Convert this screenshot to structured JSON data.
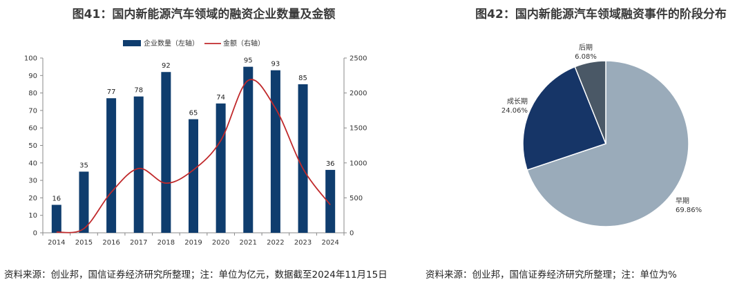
{
  "chart_data": [
    {
      "type": "bar",
      "title": "图41：国内新能源汽车领域的融资企业数量及金额",
      "categories": [
        "2014",
        "2015",
        "2016",
        "2017",
        "2018",
        "2019",
        "2020",
        "2021",
        "2022",
        "2023",
        "2024"
      ],
      "series": [
        {
          "name": "企业数量（左轴）",
          "type": "bar",
          "axis": "left",
          "values": [
            16,
            35,
            77,
            78,
            92,
            65,
            74,
            95,
            93,
            85,
            36
          ],
          "color": "#0f3d6e"
        },
        {
          "name": "金额（右轴）",
          "type": "line",
          "axis": "right",
          "values": [
            10,
            60,
            580,
            920,
            710,
            900,
            1320,
            2180,
            1780,
            920,
            400
          ],
          "color": "#c0292b"
        }
      ],
      "ylim_left": [
        0,
        100
      ],
      "yticks_left": [
        0,
        10,
        20,
        30,
        40,
        50,
        60,
        70,
        80,
        90,
        100
      ],
      "ylim_right": [
        0,
        2500
      ],
      "yticks_right": [
        0,
        500,
        1000,
        1500,
        2000,
        2500
      ],
      "legend": "top-center",
      "source": "资料来源：创业邦，国信证券经济研究所整理；注：单位为亿元，数据截至2024年11月15日"
    },
    {
      "type": "pie",
      "title": "图42：国内新能源汽车领域融资事件的阶段分布",
      "slices": [
        {
          "label": "早期",
          "value": 69.86,
          "display": "69.86%",
          "color": "#9aabba"
        },
        {
          "label": "成长期",
          "value": 24.06,
          "display": "24.06%",
          "color": "#163567"
        },
        {
          "label": "后期",
          "value": 6.08,
          "display": "6.08%",
          "color": "#4a5866"
        }
      ],
      "source": "资料来源：创业邦，国信证券经济研究所整理；注：单位为%"
    }
  ]
}
